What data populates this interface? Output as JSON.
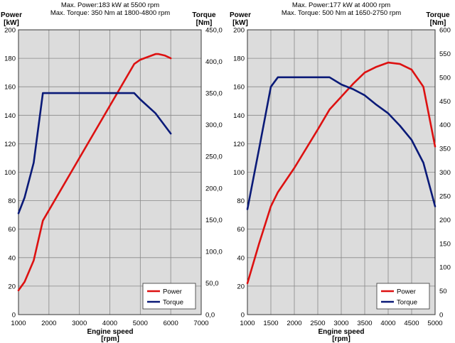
{
  "chart_data": [
    {
      "type": "line",
      "title_lines": [
        "Max. Power:183 kW at 5500  rpm",
        "Max. Torque: 350 Nm at 1800-4800  rpm"
      ],
      "xlabel_lines": [
        "Engine speed",
        "[rpm]"
      ],
      "ylabel_left_lines": [
        "Power",
        "[kW]"
      ],
      "ylabel_right_lines": [
        "Torque",
        "[Nm]"
      ],
      "xlim": [
        1000,
        7000
      ],
      "x_ticks": [
        1000,
        2000,
        3000,
        4000,
        5000,
        6000,
        7000
      ],
      "x_tick_labels": [
        "1000",
        "2000",
        "3000",
        "4000",
        "5000",
        "6000",
        "7000"
      ],
      "ylim_left": [
        0,
        200
      ],
      "y_left_ticks": [
        0,
        20,
        40,
        60,
        80,
        100,
        120,
        140,
        160,
        180,
        200
      ],
      "y_left_tick_labels": [
        "0",
        "20",
        "40",
        "60",
        "80",
        "100",
        "120",
        "140",
        "160",
        "180",
        "200"
      ],
      "ylim_right": [
        0,
        450
      ],
      "y_right_ticks": [
        0,
        50,
        100,
        150,
        200,
        250,
        300,
        350,
        400,
        450
      ],
      "y_right_tick_labels": [
        "0,0",
        "50,0",
        "100,0",
        "150,0",
        "200,0",
        "250,0",
        "300,0",
        "350,0",
        "400,0",
        "450,0"
      ],
      "grid": true,
      "legend_position": "bottom-right",
      "series": [
        {
          "name": "Power",
          "axis": "left",
          "color": "#dd1111",
          "x": [
            1000,
            1200,
            1500,
            1800,
            4800,
            5000,
            5500,
            5600,
            5800,
            6000
          ],
          "y": [
            17,
            23,
            38,
            66,
            176,
            179,
            183,
            183,
            182,
            180
          ]
        },
        {
          "name": "Torque",
          "axis": "right",
          "color": "#0a1a78",
          "x": [
            1000,
            1200,
            1500,
            1800,
            4800,
            5000,
            5500,
            6000
          ],
          "y": [
            160,
            185,
            240,
            350,
            350,
            340,
            318,
            286
          ]
        }
      ]
    },
    {
      "type": "line",
      "title_lines": [
        "Max. Power:177 kW at 4000 rpm",
        "Max. Torque: 500 Nm at 1650-2750 rpm"
      ],
      "xlabel_lines": [
        "Engine speed",
        "[rpm]"
      ],
      "ylabel_left_lines": [
        "Power",
        "[kW]"
      ],
      "ylabel_right_lines": [
        "Torque",
        "[Nm]"
      ],
      "xlim": [
        1000,
        5000
      ],
      "x_ticks": [
        1000,
        1500,
        2000,
        2500,
        3000,
        3500,
        4000,
        4500,
        5000
      ],
      "x_tick_labels": [
        "1000",
        "1500",
        "2000",
        "2500",
        "3000",
        "3500",
        "4000",
        "4500",
        "5000"
      ],
      "ylim_left": [
        0,
        200
      ],
      "y_left_ticks": [
        0,
        20,
        40,
        60,
        80,
        100,
        120,
        140,
        160,
        180,
        200
      ],
      "y_left_tick_labels": [
        "0",
        "20",
        "40",
        "60",
        "80",
        "100",
        "120",
        "140",
        "160",
        "180",
        "200"
      ],
      "ylim_right": [
        0,
        600
      ],
      "y_right_ticks": [
        0,
        50,
        100,
        150,
        200,
        250,
        300,
        350,
        400,
        450,
        500,
        550,
        600
      ],
      "y_right_tick_labels": [
        "0",
        "50",
        "100",
        "150",
        "200",
        "250",
        "300",
        "350",
        "400",
        "450",
        "500",
        "550",
        "600"
      ],
      "grid": true,
      "legend_position": "bottom-right",
      "series": [
        {
          "name": "Power",
          "axis": "left",
          "color": "#dd1111",
          "x": [
            1000,
            1250,
            1500,
            1650,
            2000,
            2500,
            2750,
            3000,
            3250,
            3500,
            3750,
            4000,
            4250,
            4500,
            4750,
            5000
          ],
          "y": [
            22,
            50,
            76,
            86,
            103,
            130,
            144,
            153,
            162,
            170,
            174,
            177,
            176,
            172,
            160,
            118
          ]
        },
        {
          "name": "Torque",
          "axis": "right",
          "color": "#0a1a78",
          "x": [
            1000,
            1250,
            1500,
            1650,
            2000,
            2500,
            2750,
            3000,
            3250,
            3500,
            3750,
            4000,
            4250,
            4500,
            4750,
            5000
          ],
          "y": [
            222,
            350,
            480,
            500,
            500,
            500,
            500,
            485,
            475,
            462,
            442,
            424,
            398,
            368,
            320,
            228
          ]
        }
      ]
    }
  ]
}
